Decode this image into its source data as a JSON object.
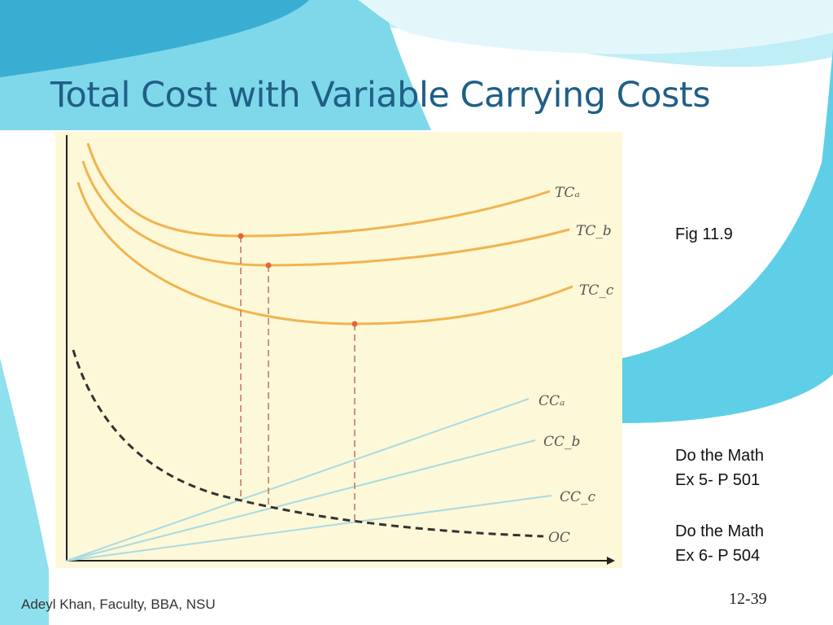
{
  "slide": {
    "title": "Total Cost with Variable Carrying Costs",
    "fig_label": "Fig 11.9",
    "exercise1_line1": "Do the Math",
    "exercise1_line2": "Ex 5- P 501",
    "exercise2_line1": "Do the Math",
    "exercise2_line2": "Ex 6- P 504",
    "footer": "Adeyl Khan, Faculty, BBA, NSU",
    "page_number": "12-39"
  },
  "figure": {
    "curve_labels": {
      "tc_a": "TCₐ",
      "tc_b": "TC_b",
      "tc_c": "TC_c",
      "cc_a": "CCₐ",
      "cc_b": "CC_b",
      "cc_c": "CC_c",
      "oc": "OC"
    }
  },
  "colors": {
    "title": "#1f5f86",
    "figure_bg": "#fdf8d8",
    "tc_curve": "#f0b450",
    "cc_line": "#a9dbe3",
    "min_point": "#e0663a",
    "oc_curve": "#333333",
    "wave_light": "#a8e6f0",
    "wave_mid": "#5ecfe6",
    "wave_dark": "#2ea7cf"
  }
}
